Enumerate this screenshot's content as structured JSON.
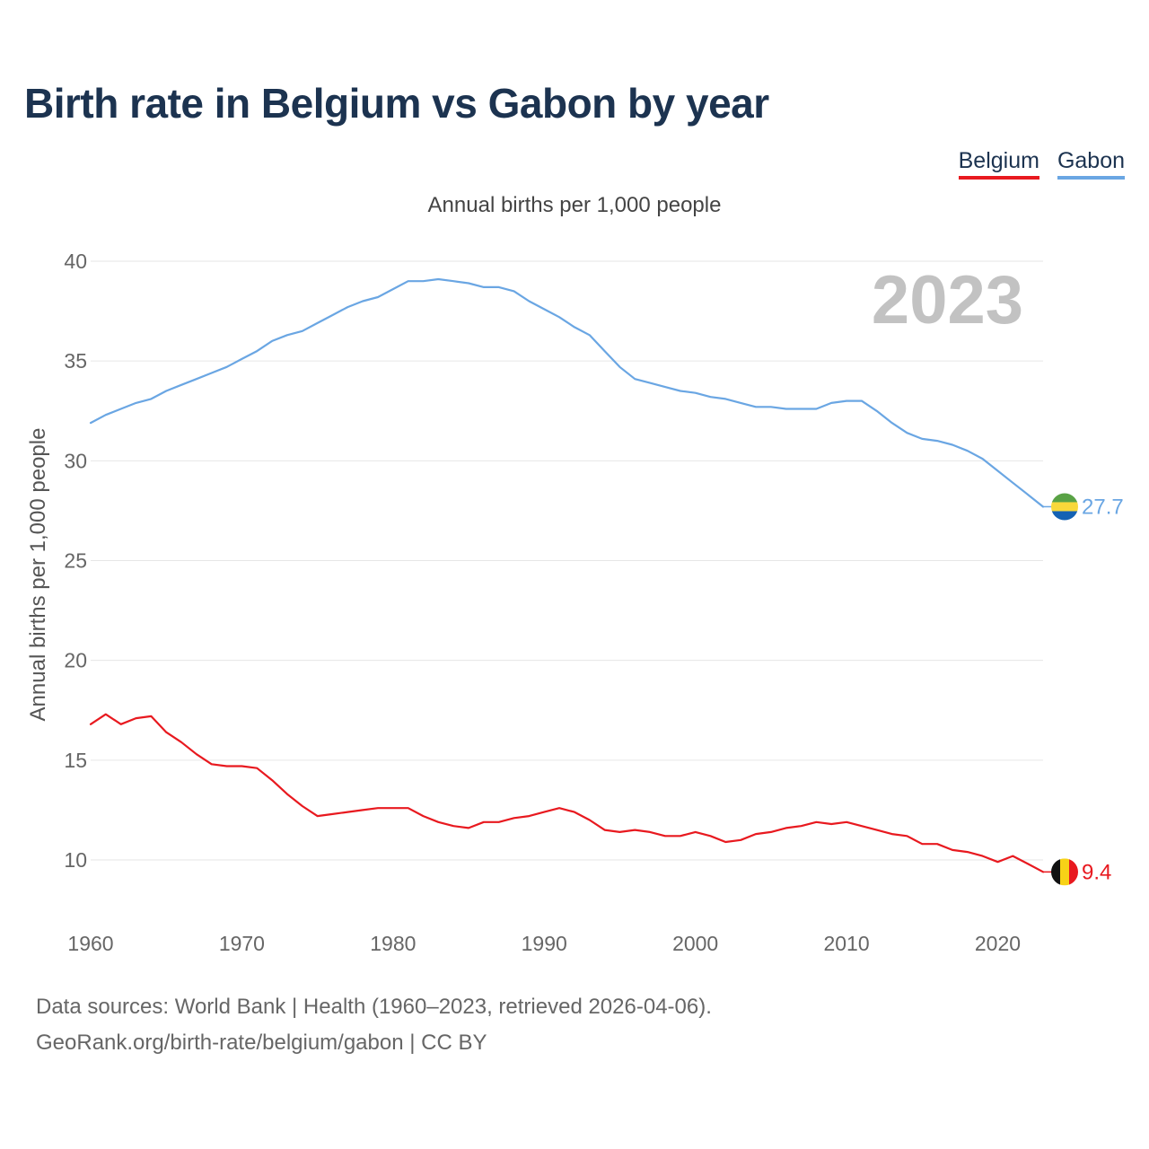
{
  "title": "Birth rate in Belgium vs Gabon by year",
  "subtitle": "Annual births per 1,000 people",
  "legend": [
    {
      "label": "Belgium",
      "color": "#e8191f"
    },
    {
      "label": "Gabon",
      "color": "#6aa6e3"
    }
  ],
  "year_watermark": "2023",
  "source": {
    "line1": "Data sources: World Bank | Health (1960–2023, retrieved 2026-04-06).",
    "line2": "GeoRank.org/birth-rate/belgium/gabon | CC BY"
  },
  "chart_data": {
    "type": "line",
    "title": "Birth rate in Belgium vs Gabon by year",
    "xlabel": "",
    "ylabel": "Annual births per 1,000 people",
    "xlim": [
      1960,
      2023
    ],
    "ylim": [
      7,
      41
    ],
    "grid": true,
    "legend_position": "top-right",
    "x_ticks": [
      "1960",
      "1970",
      "1980",
      "1990",
      "2000",
      "2010",
      "2020"
    ],
    "y_ticks": [
      "10",
      "15",
      "20",
      "25",
      "30",
      "35",
      "40"
    ],
    "x": [
      1960,
      1961,
      1962,
      1963,
      1964,
      1965,
      1966,
      1967,
      1968,
      1969,
      1970,
      1971,
      1972,
      1973,
      1974,
      1975,
      1976,
      1977,
      1978,
      1979,
      1980,
      1981,
      1982,
      1983,
      1984,
      1985,
      1986,
      1987,
      1988,
      1989,
      1990,
      1991,
      1992,
      1993,
      1994,
      1995,
      1996,
      1997,
      1998,
      1999,
      2000,
      2001,
      2002,
      2003,
      2004,
      2005,
      2006,
      2007,
      2008,
      2009,
      2010,
      2011,
      2012,
      2013,
      2014,
      2015,
      2016,
      2017,
      2018,
      2019,
      2020,
      2021,
      2022,
      2023
    ],
    "series": [
      {
        "name": "Belgium",
        "color": "#e8191f",
        "end_label": "9.4",
        "values": [
          16.8,
          17.3,
          16.8,
          17.1,
          17.2,
          16.4,
          15.9,
          15.3,
          14.8,
          14.7,
          14.7,
          14.6,
          14.0,
          13.3,
          12.7,
          12.2,
          12.3,
          12.4,
          12.5,
          12.6,
          12.6,
          12.6,
          12.2,
          11.9,
          11.7,
          11.6,
          11.9,
          11.9,
          12.1,
          12.2,
          12.4,
          12.6,
          12.4,
          12.0,
          11.5,
          11.4,
          11.5,
          11.4,
          11.2,
          11.2,
          11.4,
          11.2,
          10.9,
          11.0,
          11.3,
          11.4,
          11.6,
          11.7,
          11.9,
          11.8,
          11.9,
          11.7,
          11.5,
          11.3,
          11.2,
          10.8,
          10.8,
          10.5,
          10.4,
          10.2,
          9.9,
          10.2,
          9.8,
          9.4
        ]
      },
      {
        "name": "Gabon",
        "color": "#6aa6e3",
        "end_label": "27.7",
        "values": [
          31.9,
          32.3,
          32.6,
          32.9,
          33.1,
          33.5,
          33.8,
          34.1,
          34.4,
          34.7,
          35.1,
          35.5,
          36.0,
          36.3,
          36.5,
          36.9,
          37.3,
          37.7,
          38.0,
          38.2,
          38.6,
          39.0,
          39.0,
          39.1,
          39.0,
          38.9,
          38.7,
          38.7,
          38.5,
          38.0,
          37.6,
          37.2,
          36.7,
          36.3,
          35.5,
          34.7,
          34.1,
          33.9,
          33.7,
          33.5,
          33.4,
          33.2,
          33.1,
          32.9,
          32.7,
          32.7,
          32.6,
          32.6,
          32.6,
          32.9,
          33.0,
          33.0,
          32.5,
          31.9,
          31.4,
          31.1,
          31.0,
          30.8,
          30.5,
          30.1,
          29.5,
          28.9,
          28.3,
          27.7
        ]
      }
    ]
  }
}
